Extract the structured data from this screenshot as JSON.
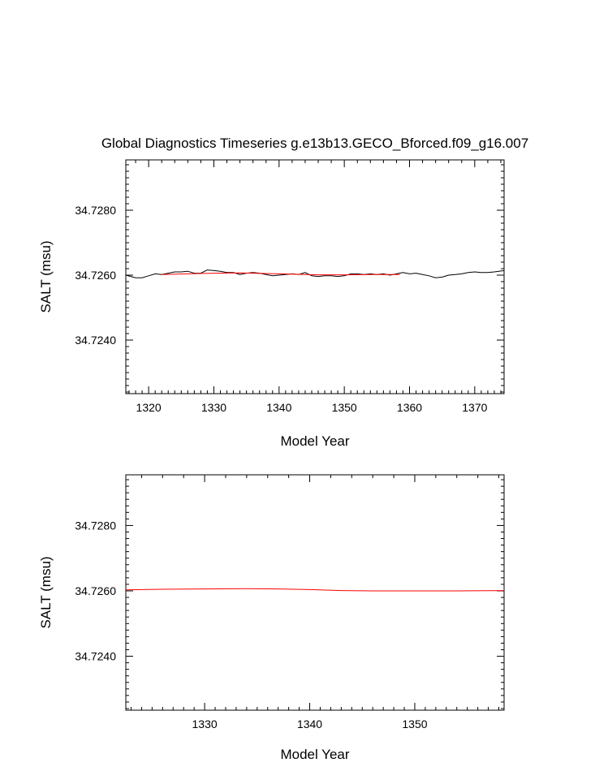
{
  "chart_data": [
    {
      "type": "line",
      "title": "Global Diagnostics Timeseries g.e13b13.GECO_Bforced.f09_g16.007",
      "xlabel": "Model Year",
      "ylabel": "SALT (msu)",
      "xlim": [
        1316.5,
        1374.5
      ],
      "ylim": [
        34.72235,
        34.72955
      ],
      "xticks": [
        1320,
        1330,
        1340,
        1350,
        1360,
        1370
      ],
      "xtick_labels": [
        "1320",
        "1330",
        "1340",
        "1350",
        "1360",
        "1370"
      ],
      "yticks": [
        34.724,
        34.726,
        34.728
      ],
      "ytick_labels": [
        "34.7240",
        "34.7260",
        "34.7280"
      ],
      "grid": false,
      "legend": "none",
      "series": [
        {
          "color": "#000000",
          "x": [
            1316.5,
            1318,
            1319,
            1320,
            1321,
            1322,
            1323,
            1324,
            1325,
            1326,
            1327,
            1328,
            1329,
            1330,
            1331,
            1332,
            1333,
            1334,
            1335,
            1336,
            1337,
            1338,
            1339,
            1340,
            1341,
            1342,
            1343,
            1344,
            1345,
            1346,
            1347,
            1348,
            1349,
            1350,
            1351,
            1352,
            1353,
            1354,
            1355,
            1356,
            1357,
            1358,
            1359,
            1360,
            1361,
            1362,
            1363,
            1364,
            1365,
            1366,
            1367,
            1368,
            1369,
            1370,
            1371,
            1372,
            1373,
            1374.5
          ],
          "y": [
            34.726,
            34.72592,
            34.72592,
            34.72598,
            34.72604,
            34.72602,
            34.72606,
            34.7261,
            34.7261,
            34.72612,
            34.72606,
            34.72606,
            34.72616,
            34.72614,
            34.72612,
            34.72608,
            34.72608,
            34.72602,
            34.72606,
            34.72608,
            34.72606,
            34.72602,
            34.72598,
            34.726,
            34.72602,
            34.72604,
            34.72602,
            34.72608,
            34.72598,
            34.72596,
            34.72598,
            34.72598,
            34.72596,
            34.72598,
            34.72604,
            34.72604,
            34.72602,
            34.72604,
            34.72602,
            34.72604,
            34.726,
            34.72604,
            34.72608,
            34.72604,
            34.72606,
            34.72602,
            34.72598,
            34.72592,
            34.72594,
            34.726,
            34.72602,
            34.72604,
            34.72608,
            34.7261,
            34.72608,
            34.72608,
            34.7261,
            34.72614
          ]
        },
        {
          "color": "#ff0000",
          "x": [
            1322,
            1326,
            1330,
            1334,
            1338,
            1342,
            1346,
            1350,
            1354,
            1358.5
          ],
          "y": [
            34.72602,
            34.72604,
            34.72606,
            34.72607,
            34.72605,
            34.72603,
            34.72601,
            34.72601,
            34.72602,
            34.72602
          ]
        }
      ]
    },
    {
      "type": "line",
      "title": "",
      "xlabel": "Model Year",
      "ylabel": "SALT (msu)",
      "xlim": [
        1322.5,
        1358.5
      ],
      "ylim": [
        34.72235,
        34.72955
      ],
      "xticks": [
        1330,
        1340,
        1350
      ],
      "xtick_labels": [
        "1330",
        "1340",
        "1350"
      ],
      "yticks": [
        34.724,
        34.726,
        34.728
      ],
      "ytick_labels": [
        "34.7240",
        "34.7260",
        "34.7280"
      ],
      "grid": false,
      "legend": "none",
      "series": [
        {
          "color": "#ff0000",
          "x": [
            1322.5,
            1326,
            1330,
            1334,
            1337,
            1340,
            1343,
            1346,
            1350,
            1354,
            1358.5
          ],
          "y": [
            34.72603,
            34.72605,
            34.72606,
            34.72607,
            34.72606,
            34.72604,
            34.72601,
            34.726,
            34.726,
            34.726,
            34.72601
          ]
        }
      ]
    }
  ]
}
